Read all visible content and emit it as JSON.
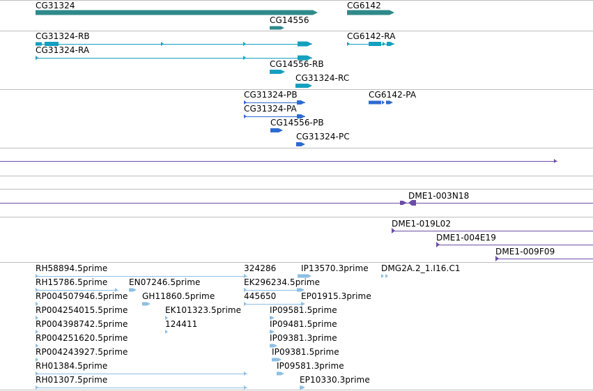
{
  "colors": {
    "gene": "#2f8a8a",
    "transcript": "#14a0be",
    "protein": "#2d6bd0",
    "clone": "#6a4da8",
    "est": "#8dbfe3",
    "divider": "#bdbdbd"
  },
  "tracks": {
    "genes": [
      "CG31324",
      "CG6142",
      "CG14556"
    ],
    "transcripts": [
      "CG31324-RB",
      "CG6142-RA",
      "CG31324-RA",
      "CG14556-RB",
      "CG31324-RC"
    ],
    "proteins": [
      "CG31324-PB",
      "CG6142-PA",
      "CG31324-PA",
      "CG14556-PB",
      "CG31324-PC"
    ],
    "clones": [
      "DME1-003N18",
      "DME1-019L02",
      "DME1-004E19",
      "DME1-009F09"
    ],
    "ests": [
      "RH58894.5prime",
      "324286",
      "IP13570.3prime",
      "DMG2A.2_1.I16.C1",
      "RH15786.5prime",
      "EN07246.5prime",
      "EK296234.5prime",
      "RP004507946.5prime",
      "GH11860.5prime",
      "445650",
      "EP01915.3prime",
      "RP004254015.5prime",
      "EK101323.5prime",
      "IP09581.5prime",
      "RP004398742.5prime",
      "124411",
      "IP09481.5prime",
      "RP004251620.5prime",
      "IP09381.3prime",
      "RP004243927.5prime",
      "IP09381.5prime",
      "RH01384.5prime",
      "IP09581.3prime",
      "RH01307.5prime",
      "EP10330.3prime"
    ]
  }
}
